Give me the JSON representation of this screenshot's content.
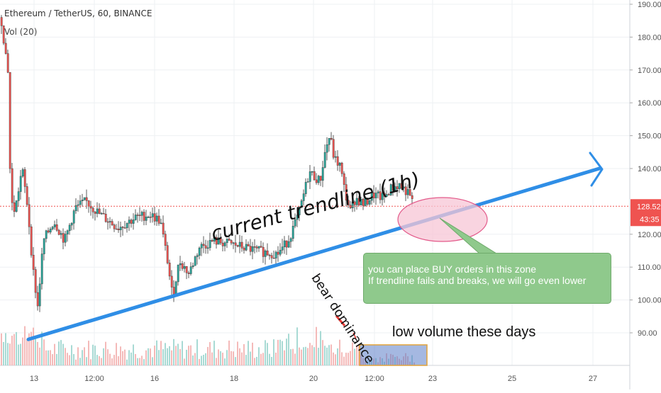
{
  "header": {
    "symbol_line": "Ethereum / TetherUS, 60, BINANCE",
    "indicator_line": "Vol (20)"
  },
  "chart_data": {
    "type": "candlestick",
    "price_axis_ticks": [
      "190.00",
      "180.00",
      "170.00",
      "160.00",
      "150.00",
      "140.00",
      "120.00",
      "110.00",
      "100.00",
      "90.00"
    ],
    "price_axis_range": [
      80,
      193
    ],
    "time_axis_ticks": [
      "13",
      "12:00",
      "16",
      "18",
      "20",
      "12:00",
      "23",
      "25",
      "27"
    ],
    "last_price_label": "128.52",
    "countdown_label": "43:35",
    "last_price": 128.52,
    "price_path": [
      {
        "x": 0,
        "close": 186
      },
      {
        "x": 10,
        "close": 170
      },
      {
        "x": 14,
        "close": 130
      },
      {
        "x": 20,
        "close": 127
      },
      {
        "x": 30,
        "close": 140
      },
      {
        "x": 38,
        "close": 128
      },
      {
        "x": 45,
        "close": 110
      },
      {
        "x": 52,
        "close": 98
      },
      {
        "x": 60,
        "close": 118
      },
      {
        "x": 75,
        "close": 124
      },
      {
        "x": 90,
        "close": 118
      },
      {
        "x": 105,
        "close": 128
      },
      {
        "x": 120,
        "close": 130
      },
      {
        "x": 140,
        "close": 126
      },
      {
        "x": 165,
        "close": 122
      },
      {
        "x": 190,
        "close": 125
      },
      {
        "x": 210,
        "close": 126
      },
      {
        "x": 225,
        "close": 124
      },
      {
        "x": 235,
        "close": 112
      },
      {
        "x": 242,
        "close": 101
      },
      {
        "x": 252,
        "close": 112
      },
      {
        "x": 265,
        "close": 108
      },
      {
        "x": 280,
        "close": 116
      },
      {
        "x": 300,
        "close": 118
      },
      {
        "x": 325,
        "close": 117
      },
      {
        "x": 360,
        "close": 115
      },
      {
        "x": 390,
        "close": 114
      },
      {
        "x": 405,
        "close": 118
      },
      {
        "x": 420,
        "close": 126
      },
      {
        "x": 435,
        "close": 139
      },
      {
        "x": 450,
        "close": 136
      },
      {
        "x": 458,
        "close": 146
      },
      {
        "x": 464,
        "close": 150
      },
      {
        "x": 470,
        "close": 143
      },
      {
        "x": 478,
        "close": 141
      },
      {
        "x": 486,
        "close": 132
      },
      {
        "x": 493,
        "close": 127
      },
      {
        "x": 500,
        "close": 131
      },
      {
        "x": 512,
        "close": 129
      },
      {
        "x": 525,
        "close": 132
      },
      {
        "x": 540,
        "close": 131
      },
      {
        "x": 550,
        "close": 134
      },
      {
        "x": 562,
        "close": 135
      },
      {
        "x": 572,
        "close": 133
      },
      {
        "x": 580,
        "close": 130
      }
    ],
    "trendline": {
      "from": {
        "x": 40,
        "y": 88
      },
      "to": {
        "x": 845,
        "y": 140
      }
    },
    "annotations": {
      "trendline_label": "current trendline (1h)",
      "bear_label": "bear dominance",
      "volume_label": "low volume these days",
      "note_line1": "you can place BUY orders in this zone",
      "note_line2": "If trendline fails and breaks, we will go even lower"
    },
    "colors": {
      "up": "#26a69a",
      "down": "#ef5350",
      "trendline": "#2f8ee6",
      "zone_fill": "#f7c6d6",
      "zone_stroke": "#e35a8a",
      "note_fill": "#8fc98c",
      "price_label_bg": "#ef5350",
      "grid": "#eef0f3"
    },
    "grid": true
  }
}
